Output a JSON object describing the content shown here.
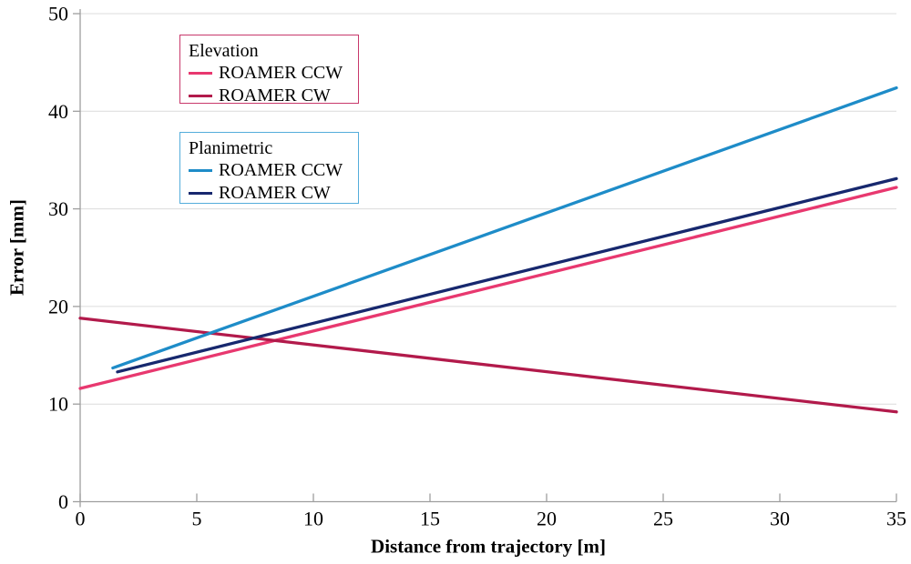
{
  "chart_data": {
    "type": "line",
    "title": "",
    "xlabel": "Distance from trajectory [m]",
    "ylabel": "Error [mm]",
    "xlim": [
      0,
      35
    ],
    "ylim": [
      0,
      50
    ],
    "x_ticks": [
      0,
      5,
      10,
      15,
      20,
      25,
      30,
      35
    ],
    "y_ticks": [
      0,
      10,
      20,
      30,
      40,
      50
    ],
    "grid": "horizontal-only",
    "grid_color": "#dcdcdc",
    "axis_color": "#9e9e9e",
    "legend_position": "upper-left-inside",
    "series": [
      {
        "group": "Elevation",
        "name": "ROAMER CCW",
        "color": "#e8386f",
        "points": [
          [
            0,
            11.6
          ],
          [
            35,
            32.2
          ]
        ]
      },
      {
        "group": "Elevation",
        "name": "ROAMER CW",
        "color": "#b21a4b",
        "points": [
          [
            0,
            18.8
          ],
          [
            35,
            9.2
          ]
        ]
      },
      {
        "group": "Planimetric",
        "name": "ROAMER CCW",
        "color": "#1e8cc8",
        "points": [
          [
            1.4,
            13.7
          ],
          [
            35,
            42.4
          ]
        ]
      },
      {
        "group": "Planimetric",
        "name": "ROAMER CW",
        "color": "#17286e",
        "points": [
          [
            1.6,
            13.3
          ],
          [
            35,
            33.1
          ]
        ]
      }
    ],
    "legend": [
      {
        "title": "Elevation",
        "border_color": "#c8396b",
        "items": [
          {
            "label": "ROAMER CCW",
            "color": "#e8386f"
          },
          {
            "label": "ROAMER CW",
            "color": "#b21a4b"
          }
        ]
      },
      {
        "title": "Planimetric",
        "border_color": "#54addb",
        "items": [
          {
            "label": "ROAMER CCW",
            "color": "#1e8cc8"
          },
          {
            "label": "ROAMER CW",
            "color": "#17286e"
          }
        ]
      }
    ]
  }
}
